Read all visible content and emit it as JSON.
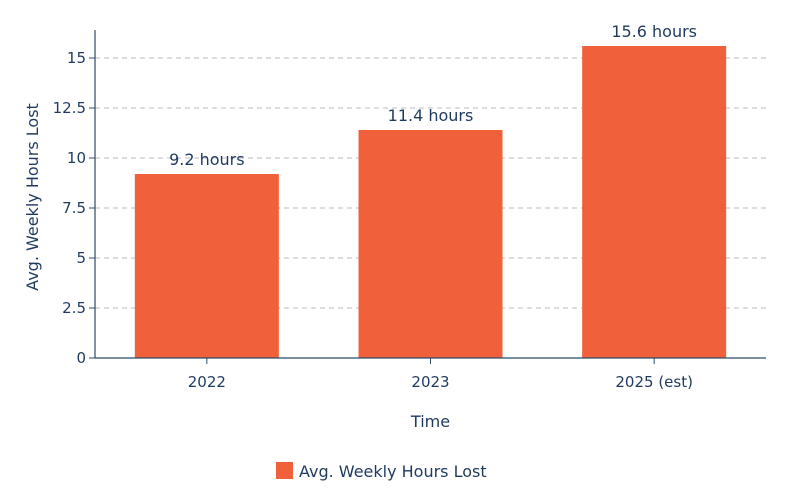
{
  "chart_data": {
    "type": "bar",
    "categories": [
      "2022",
      "2023",
      "2025 (est)"
    ],
    "series": [
      {
        "name": "Avg. Weekly Hours Lost",
        "values": [
          9.2,
          11.4,
          15.6
        ],
        "data_labels": [
          "9.2 hours",
          "11.4 hours",
          "15.6 hours"
        ],
        "color": "#f0603a"
      }
    ],
    "xlabel": "Time",
    "ylabel": "Avg. Weekly Hours Lost",
    "ylim": [
      0,
      16.4
    ],
    "yticks": [
      0,
      2.5,
      5,
      7.5,
      10,
      12.5,
      15
    ],
    "ytick_labels": [
      "0",
      "2.5",
      "5",
      "7.5",
      "10",
      "12.5",
      "15"
    ],
    "grid": true,
    "legend_position": "bottom-center"
  },
  "colors": {
    "text": "#1f3a5f",
    "axis": "#2e4a66",
    "grid": "#b8bcc2"
  }
}
